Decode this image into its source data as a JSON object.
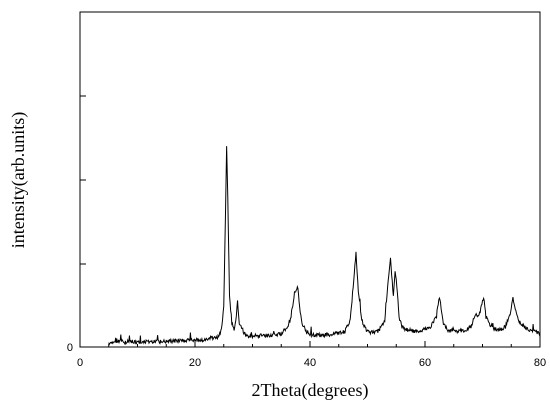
{
  "chart_data": {
    "type": "line",
    "title": "",
    "xlabel": "2Theta(degrees)",
    "ylabel": "intensity(arb.units)",
    "xlim": [
      0,
      80
    ],
    "ylim": [
      0,
      100
    ],
    "x_ticks": [
      0,
      20,
      40,
      60,
      80
    ],
    "y_ticks": [
      0
    ],
    "grid": false,
    "legend": "none",
    "line_color": "#000000",
    "series": [
      {
        "baseline": 1.2,
        "noise_amplitude": 1.2,
        "x": [
          5,
          6,
          7,
          8,
          9,
          10,
          12,
          14,
          16,
          18,
          20,
          22,
          24,
          24.6,
          25.0,
          25.3,
          25.5,
          25.7,
          26.0,
          26.4,
          26.8,
          27.1,
          27.4,
          27.7,
          28.2,
          29,
          31,
          33,
          35,
          36.5,
          37.3,
          37.9,
          38.2,
          38.6,
          39.2,
          40,
          42,
          44,
          46,
          47.0,
          47.6,
          48.0,
          48.4,
          49.0,
          50,
          51,
          52,
          53.0,
          53.6,
          54.0,
          54.5,
          54.8,
          55.1,
          55.5,
          56.0,
          57,
          58,
          59,
          60,
          61,
          62.0,
          62.5,
          62.8,
          63.2,
          64,
          65,
          66,
          67,
          68,
          68.8,
          69.3,
          69.8,
          70.2,
          70.6,
          71.2,
          72,
          73,
          74,
          74.8,
          75.3,
          75.7,
          76.2,
          76.8,
          77.5,
          78,
          79,
          80
        ],
        "y": [
          1,
          1.5,
          1.8,
          1.4,
          1.6,
          1.5,
          1.7,
          1.6,
          1.8,
          1.9,
          2.0,
          2.3,
          3.0,
          5,
          12,
          40,
          60,
          45,
          15,
          7,
          5,
          8,
          14,
          7,
          5,
          3.2,
          3.3,
          3.4,
          3.8,
          7,
          16,
          18,
          12,
          7,
          5,
          3.7,
          3.6,
          3.8,
          4.5,
          8,
          20,
          28,
          17,
          8,
          4.5,
          4.5,
          4.8,
          8,
          20,
          26,
          15,
          23,
          18,
          9,
          6,
          5,
          4.8,
          4.8,
          5.2,
          6,
          9,
          15,
          12,
          7,
          5,
          4.8,
          4.8,
          5,
          6,
          10,
          9,
          12,
          15,
          9,
          7,
          5.5,
          5.2,
          6,
          10,
          15,
          11,
          8,
          7,
          5.5,
          5,
          4.5,
          4
        ]
      }
    ]
  }
}
